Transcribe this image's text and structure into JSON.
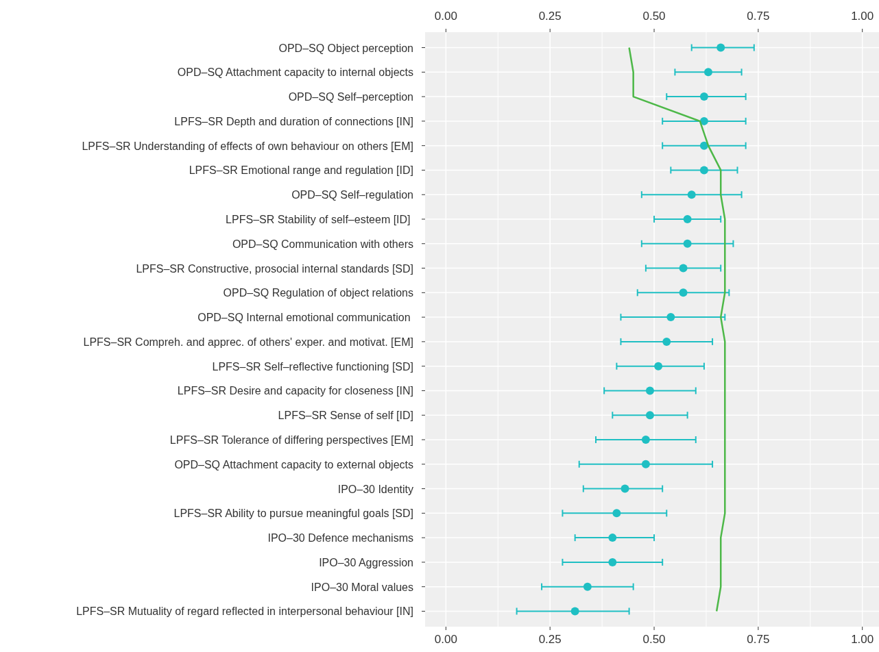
{
  "chart_data": {
    "type": "scatter",
    "orientation": "horizontal",
    "categories": [
      "OPD–SQ Object perception",
      "OPD–SQ Attachment capacity to internal objects",
      "OPD–SQ Self–perception",
      "LPFS–SR Depth and duration of connections [IN]",
      "LPFS–SR Understanding of effects of own behaviour on others [EM]",
      "LPFS–SR Emotional range and regulation [ID]",
      "OPD–SQ Self–regulation",
      "LPFS–SR Stability of self–esteem [ID] ",
      "OPD–SQ Communication with others",
      "LPFS–SR Constructive, prosocial internal standards [SD]",
      "OPD–SQ Regulation of object relations",
      "OPD–SQ Internal emotional communication ",
      "LPFS–SR Compreh. and apprec. of others' exper. and motivat. [EM]",
      "LPFS–SR Self–reflective functioning [SD]",
      "LPFS–SR Desire and capacity for closeness [IN]",
      "LPFS–SR Sense of self [ID]",
      "LPFS–SR Tolerance of differing perspectives [EM]",
      "OPD–SQ Attachment capacity to external objects",
      "IPO–30 Identity",
      "LPFS–SR Ability to pursue meaningful goals [SD]",
      "IPO–30 Defence mechanisms",
      "IPO–30 Aggression",
      "IPO–30 Moral values",
      "LPFS–SR Mutuality of regard reflected in interpersonal behaviour [IN]"
    ],
    "series": [
      {
        "color": "#1fbfc3",
        "marker": "circle",
        "values": [
          0.66,
          0.63,
          0.62,
          0.62,
          0.62,
          0.62,
          0.59,
          0.58,
          0.58,
          0.57,
          0.57,
          0.54,
          0.53,
          0.51,
          0.49,
          0.49,
          0.48,
          0.48,
          0.43,
          0.41,
          0.4,
          0.4,
          0.34,
          0.31
        ],
        "errors": [
          [
            0.59,
            0.74
          ],
          [
            0.55,
            0.71
          ],
          [
            0.53,
            0.72
          ],
          [
            0.52,
            0.72
          ],
          [
            0.52,
            0.72
          ],
          [
            0.54,
            0.7
          ],
          [
            0.47,
            0.71
          ],
          [
            0.5,
            0.66
          ],
          [
            0.47,
            0.69
          ],
          [
            0.48,
            0.66
          ],
          [
            0.46,
            0.68
          ],
          [
            0.42,
            0.67
          ],
          [
            0.42,
            0.64
          ],
          [
            0.41,
            0.62
          ],
          [
            0.38,
            0.6
          ],
          [
            0.4,
            0.58
          ],
          [
            0.36,
            0.6
          ],
          [
            0.32,
            0.64
          ],
          [
            0.33,
            0.52
          ],
          [
            0.28,
            0.53
          ],
          [
            0.31,
            0.5
          ],
          [
            0.28,
            0.52
          ],
          [
            0.23,
            0.45
          ],
          [
            0.17,
            0.44
          ]
        ]
      },
      {
        "type": "line",
        "color": "#4db848",
        "values": [
          0.44,
          0.45,
          0.45,
          0.61,
          0.63,
          0.66,
          0.66,
          0.67,
          0.67,
          0.67,
          0.67,
          0.66,
          0.67,
          0.67,
          0.67,
          0.67,
          0.67,
          0.67,
          0.67,
          0.67,
          0.66,
          0.66,
          0.66,
          0.65
        ]
      }
    ],
    "xlim": [
      -0.05,
      1.04
    ],
    "xticks": [
      {
        "value": 0,
        "label": "0.00"
      },
      {
        "value": 0.25,
        "label": "0.25"
      },
      {
        "value": 0.5,
        "label": "0.50"
      },
      {
        "value": 0.75,
        "label": "0.75"
      },
      {
        "value": 1,
        "label": "1.00"
      }
    ],
    "x2lim": [
      -0.05,
      1.04
    ],
    "x2ticks": [
      {
        "value": 0,
        "label": "0.00"
      },
      {
        "value": 0.25,
        "label": "0.25"
      },
      {
        "value": 0.5,
        "label": "0.50"
      },
      {
        "value": 0.75,
        "label": "0.75"
      },
      {
        "value": 1,
        "label": "1.00"
      }
    ],
    "grid": true
  }
}
